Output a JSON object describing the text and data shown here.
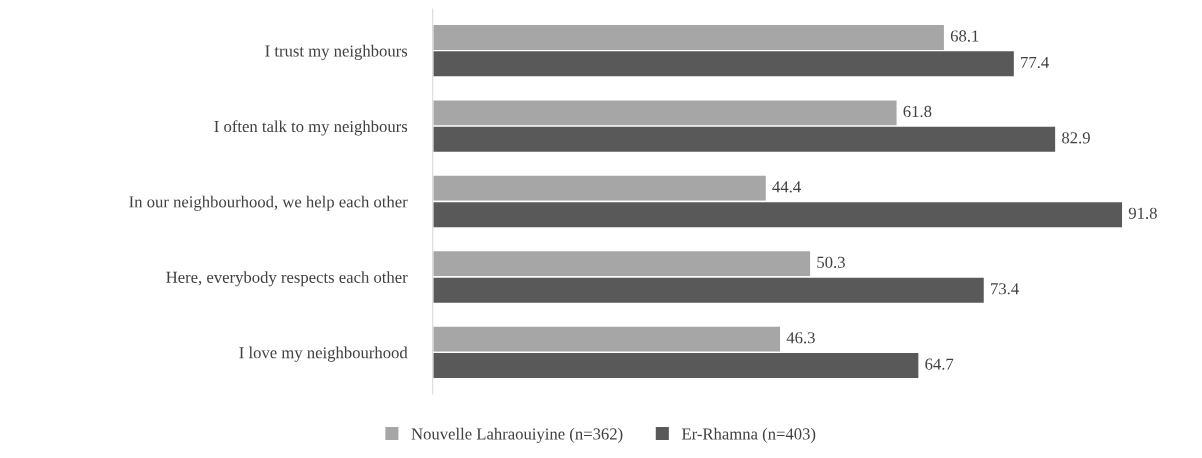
{
  "chart_data": {
    "type": "bar",
    "orientation": "horizontal",
    "categories": [
      "I trust my neighbours",
      "I often talk to my neighbours",
      "In our neighbourhood, we help each other",
      "Here, everybody respects each other",
      "I love my neighbourhood"
    ],
    "series": [
      {
        "name": "Nouvelle Lahraouiyine (n=362)",
        "color": "#a6a6a6",
        "values": [
          68.1,
          61.8,
          44.4,
          50.3,
          46.3
        ]
      },
      {
        "name": "Er-Rhamna (n=403)",
        "color": "#595959",
        "values": [
          77.4,
          82.9,
          91.8,
          73.4,
          64.7
        ]
      }
    ],
    "data_labels": true,
    "legend": "bottom",
    "grid": false
  }
}
